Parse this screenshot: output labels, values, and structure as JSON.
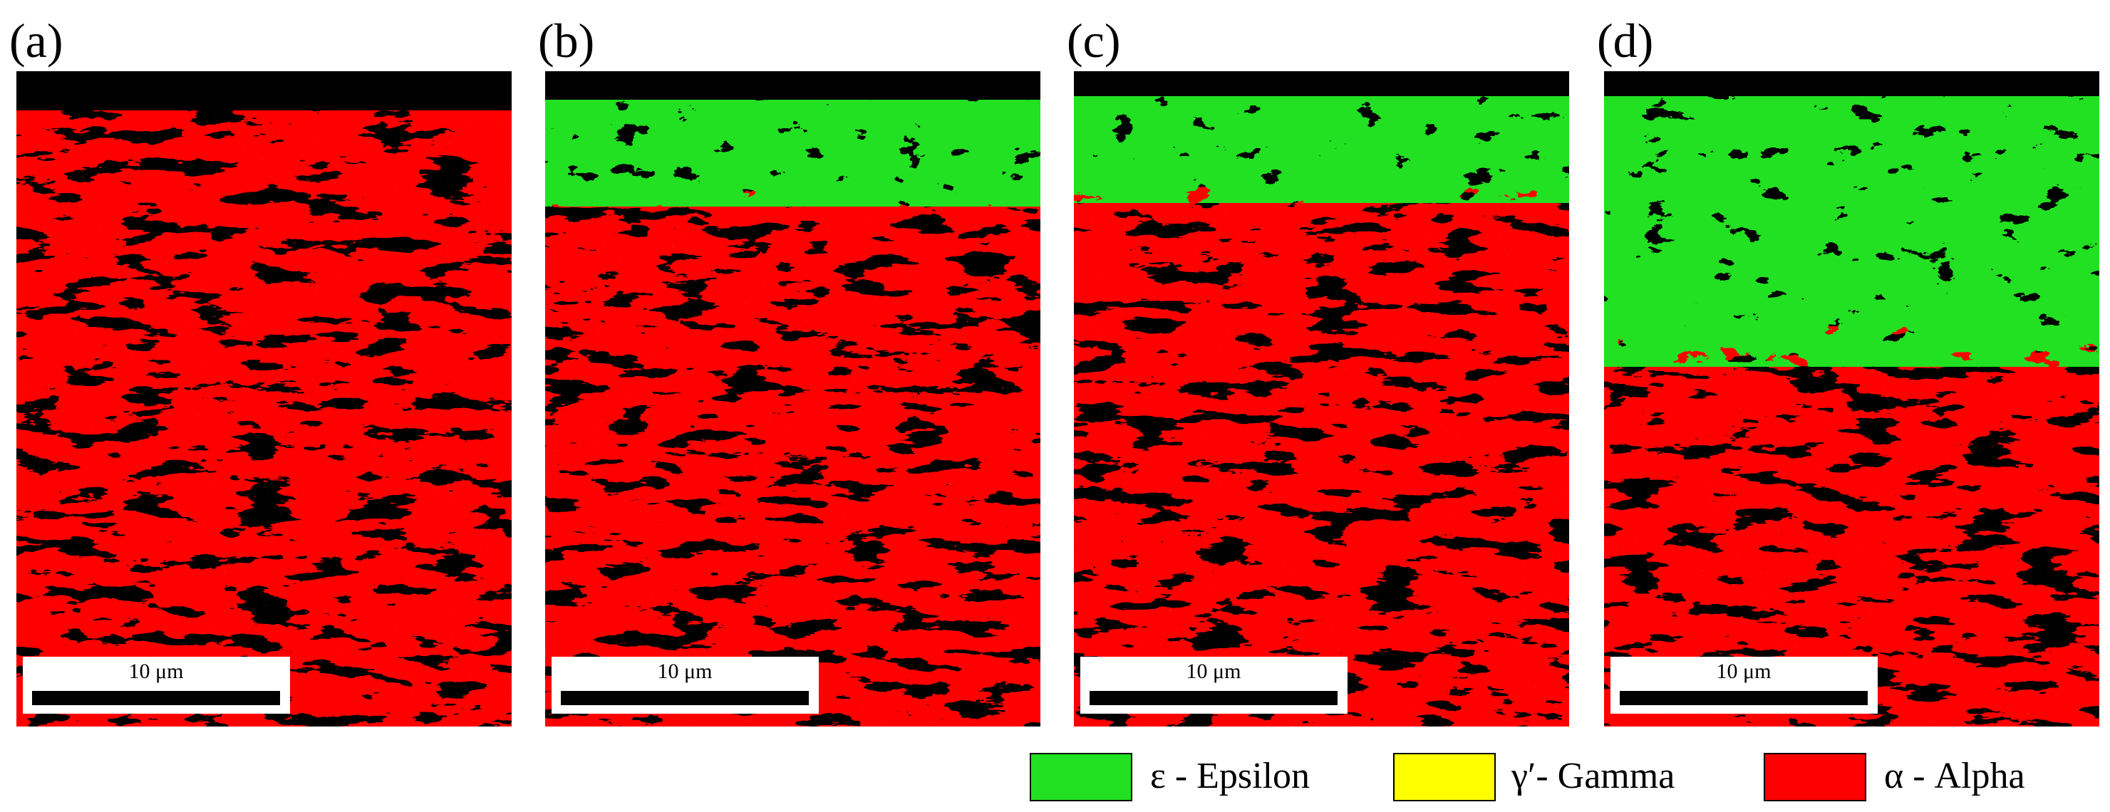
{
  "panels": [
    {
      "label": "(a)",
      "scale_bar": "10 μm"
    },
    {
      "label": "(b)",
      "scale_bar": "10 μm"
    },
    {
      "label": "(c)",
      "scale_bar": "10 μm"
    },
    {
      "label": "(d)",
      "scale_bar": "10 μm"
    }
  ],
  "legend": [
    {
      "label": "ε - Epsilon"
    },
    {
      "label": "γ′- Gamma"
    },
    {
      "label": "α - Alpha"
    }
  ]
}
